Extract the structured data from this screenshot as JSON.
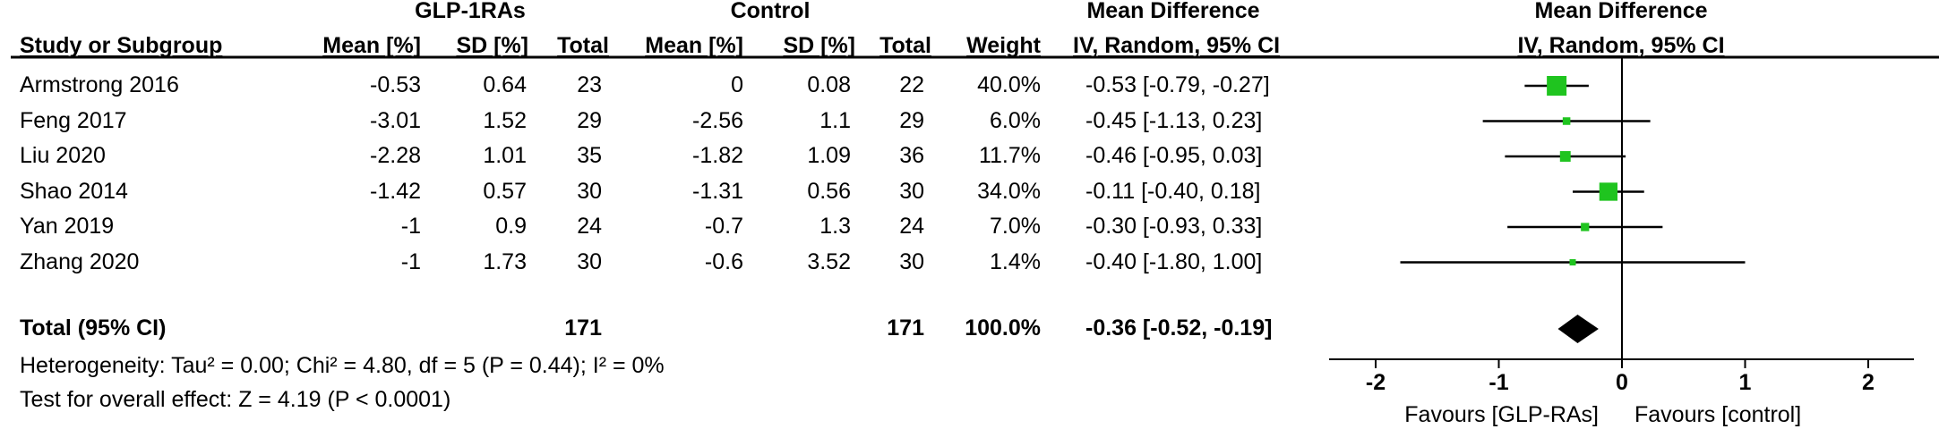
{
  "chart_data": {
    "type": "forest",
    "group_headers": {
      "experimental": "GLP-1RAs",
      "control": "Control",
      "md_text": "Mean Difference",
      "md_plot": "Mean Difference"
    },
    "columns": {
      "study": "Study or Subgroup",
      "exp_mean": "Mean [%]",
      "exp_sd": "SD [%]",
      "exp_total": "Total",
      "ctl_mean": "Mean [%]",
      "ctl_sd": "SD [%]",
      "ctl_total": "Total",
      "weight": "Weight",
      "ci_text": "IV, Random, 95% CI",
      "ci_plot": "IV, Random, 95% CI"
    },
    "studies": [
      {
        "name": "Armstrong 2016",
        "exp_mean": "-0.53",
        "exp_sd": "0.64",
        "exp_total": "23",
        "ctl_mean": "0",
        "ctl_sd": "0.08",
        "ctl_total": "22",
        "weight": "40.0%",
        "ci": "-0.53 [-0.79, -0.27]",
        "md": -0.53,
        "lo": -0.79,
        "hi": -0.27,
        "w": 40.0
      },
      {
        "name": "Feng 2017",
        "exp_mean": "-3.01",
        "exp_sd": "1.52",
        "exp_total": "29",
        "ctl_mean": "-2.56",
        "ctl_sd": "1.1",
        "ctl_total": "29",
        "weight": "6.0%",
        "ci": "-0.45 [-1.13, 0.23]",
        "md": -0.45,
        "lo": -1.13,
        "hi": 0.23,
        "w": 6.0
      },
      {
        "name": "Liu 2020",
        "exp_mean": "-2.28",
        "exp_sd": "1.01",
        "exp_total": "35",
        "ctl_mean": "-1.82",
        "ctl_sd": "1.09",
        "ctl_total": "36",
        "weight": "11.7%",
        "ci": "-0.46 [-0.95, 0.03]",
        "md": -0.46,
        "lo": -0.95,
        "hi": 0.03,
        "w": 11.7
      },
      {
        "name": "Shao 2014",
        "exp_mean": "-1.42",
        "exp_sd": "0.57",
        "exp_total": "30",
        "ctl_mean": "-1.31",
        "ctl_sd": "0.56",
        "ctl_total": "30",
        "weight": "34.0%",
        "ci": "-0.11 [-0.40, 0.18]",
        "md": -0.11,
        "lo": -0.4,
        "hi": 0.18,
        "w": 34.0
      },
      {
        "name": "Yan 2019",
        "exp_mean": "-1",
        "exp_sd": "0.9",
        "exp_total": "24",
        "ctl_mean": "-0.7",
        "ctl_sd": "1.3",
        "ctl_total": "24",
        "weight": "7.0%",
        "ci": "-0.30 [-0.93, 0.33]",
        "md": -0.3,
        "lo": -0.93,
        "hi": 0.33,
        "w": 7.0
      },
      {
        "name": "Zhang 2020",
        "exp_mean": "-1",
        "exp_sd": "1.73",
        "exp_total": "30",
        "ctl_mean": "-0.6",
        "ctl_sd": "3.52",
        "ctl_total": "30",
        "weight": "1.4%",
        "ci": "-0.40 [-1.80, 1.00]",
        "md": -0.4,
        "lo": -1.8,
        "hi": 1.0,
        "w": 1.4
      }
    ],
    "total": {
      "label": "Total (95% CI)",
      "exp_total": "171",
      "ctl_total": "171",
      "weight": "100.0%",
      "ci": "-0.36 [-0.52, -0.19]",
      "md": -0.36,
      "lo": -0.52,
      "hi": -0.19
    },
    "heterogeneity": "Heterogeneity: Tau² = 0.00; Chi² = 4.80, df = 5 (P = 0.44); I² = 0%",
    "overall_effect": "Test for overall effect: Z = 4.19 (P < 0.0001)",
    "axis": {
      "xlim": [
        -2,
        2
      ],
      "ticks": [
        -2,
        -1,
        0,
        1,
        2
      ],
      "tick_labels": [
        "-2",
        "-1",
        "0",
        "1",
        "2"
      ]
    },
    "favours_left": "Favours [GLP-RAs]",
    "favours_right": "Favours [control]",
    "colors": {
      "study_marker": "#1fc41f",
      "diamond": "#000000",
      "lines": "#000000"
    }
  }
}
